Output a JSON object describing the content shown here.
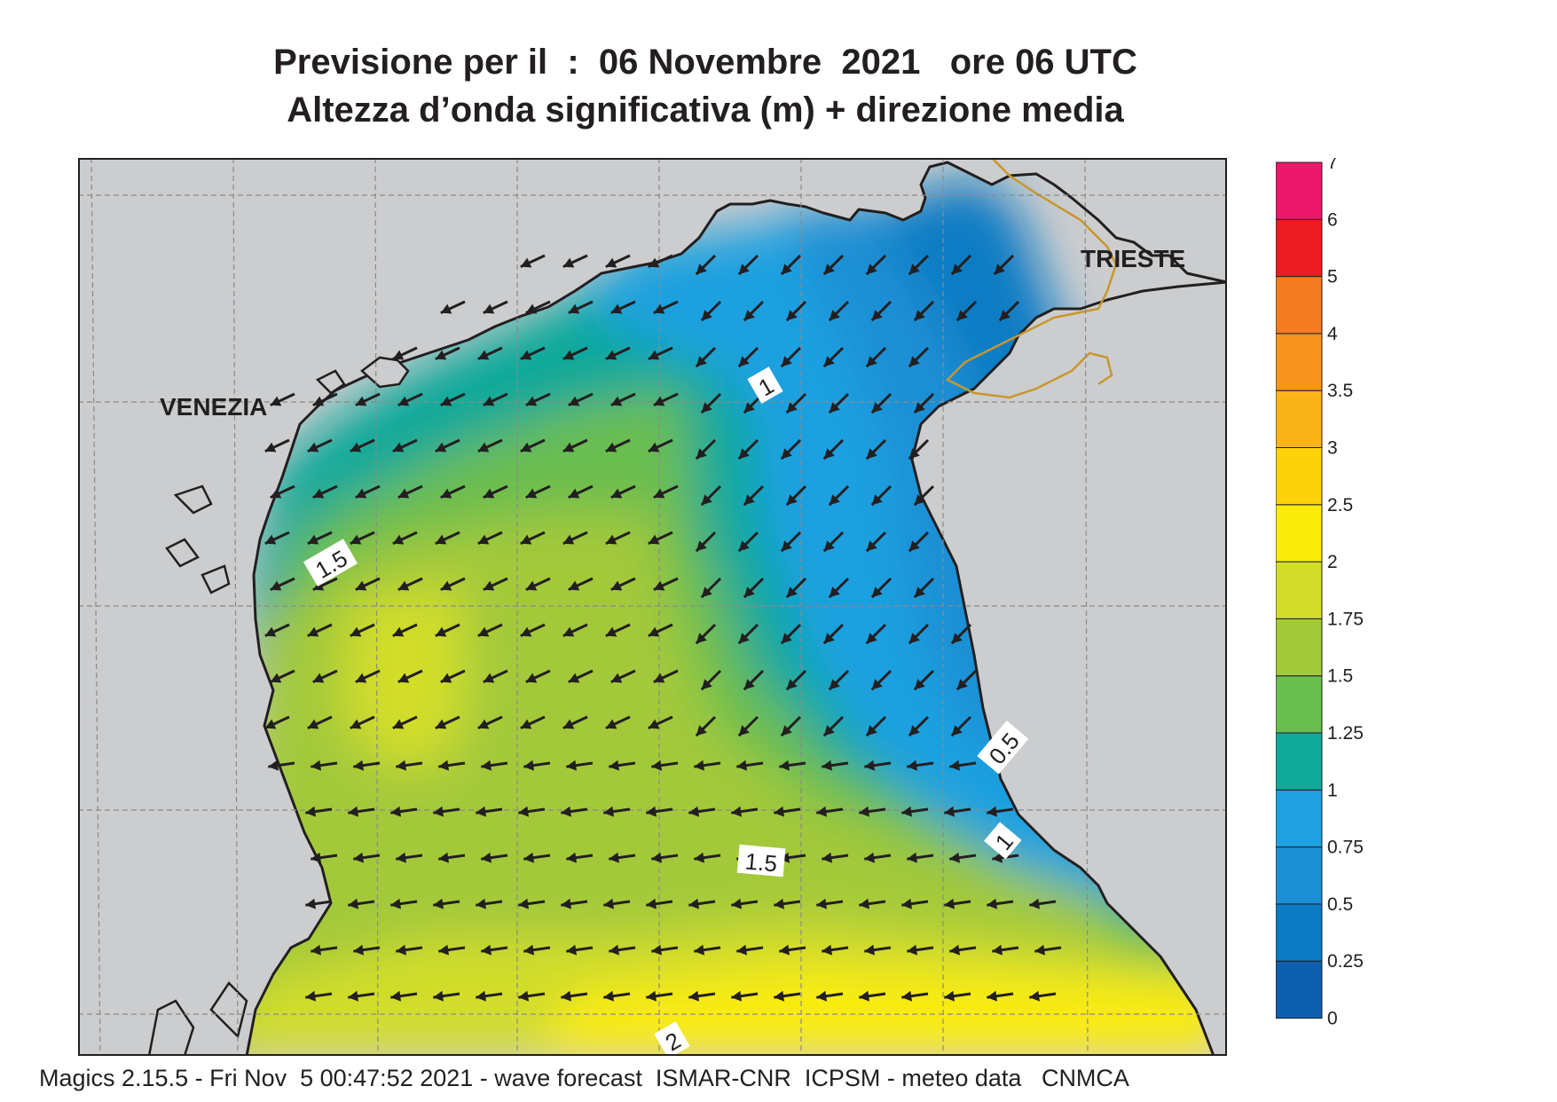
{
  "title_line1": "Previsione per il  :  06 Novembre  2021   ore 06 UTC",
  "title_line2": "Altezza d’onda significativa (m) + direzione media",
  "footer": "Magics 2.15.5 - Fri Nov  5 00:47:52 2021 - wave forecast  ISMAR-CNR  ICPSM - meteo data   CNMCA",
  "cities": [
    {
      "name": "VENEZIA"
    },
    {
      "name": "TRIESTE"
    }
  ],
  "contour_labels": [
    "1",
    "1.5",
    "0.5",
    "1",
    "1.5",
    "2"
  ],
  "legend": {
    "ticks": [
      "0",
      "0.25",
      "0.5",
      "0.75",
      "1",
      "1.25",
      "1.5",
      "1.75",
      "2",
      "2.5",
      "3",
      "3.5",
      "4",
      "5",
      "6",
      "7"
    ],
    "colors": [
      "#0c5fad",
      "#0b7cc4",
      "#1a8fd4",
      "#1fa0e0",
      "#11a99a",
      "#6abd4f",
      "#a3c93a",
      "#d2dd2a",
      "#fbec0a",
      "#fdd20a",
      "#fbb31a",
      "#f7941d",
      "#f47b20",
      "#ec1c24",
      "#ec1869"
    ]
  },
  "colors": {
    "land": "#cccdcf",
    "border": "#c8972c",
    "coast": "#231f20",
    "arrow": "#231f20"
  },
  "wave_direction": "south-west"
}
